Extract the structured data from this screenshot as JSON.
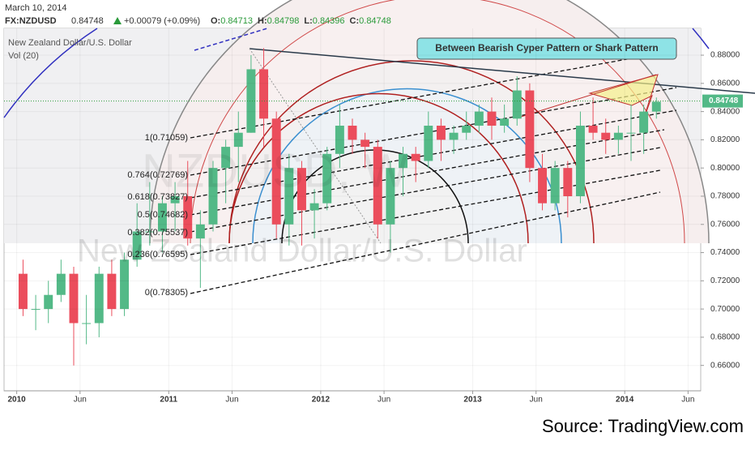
{
  "chart_data": {
    "type": "candlestick",
    "date": "March 10, 2014",
    "symbol": "FX:NZDUSD",
    "header_price": "0.84748",
    "header_change": "+0.00079 (+0.09%)",
    "ohlc_labels": [
      "O:",
      "H:",
      "L:",
      "C:"
    ],
    "ohlc_values": [
      "0.84713",
      "0.84798",
      "0.84396",
      "0.84748"
    ],
    "legend_name": "New Zealand Dollar/U.S. Dollar",
    "legend_volume": "Vol (20)",
    "watermark_symbol": "NZDUSD, W",
    "watermark_name": "New Zealand Dollar/U.S. Dollar",
    "annotation": "Between Bearish Cyper Pattern or Shark Pattern",
    "fib_labels": [
      "1(0.71059)",
      "0.764(0.72769)",
      "0.618(0.73827)",
      "0.5(0.74682)",
      "0.382(0.75537)",
      "0.236(0.76595)",
      "0(0.78305)"
    ],
    "source": "Source: TradingView.com",
    "last_price": 0.84748,
    "up_color": "#53b987",
    "down_color": "#eb4d5c",
    "x": [
      "2010-01",
      "2010-02",
      "2010-03",
      "2010-04",
      "2010-05",
      "2010-06",
      "2010-07",
      "2010-08",
      "2010-09",
      "2010-10",
      "2010-11",
      "2010-12",
      "2011-01",
      "2011-02",
      "2011-03",
      "2011-04",
      "2011-05",
      "2011-06",
      "2011-07",
      "2011-08",
      "2011-09",
      "2011-10",
      "2011-11",
      "2011-12",
      "2012-01",
      "2012-02",
      "2012-03",
      "2012-04",
      "2012-05",
      "2012-06",
      "2012-07",
      "2012-08",
      "2012-09",
      "2012-10",
      "2012-11",
      "2012-12",
      "2013-01",
      "2013-02",
      "2013-03",
      "2013-04",
      "2013-05",
      "2013-06",
      "2013-07",
      "2013-08",
      "2013-09",
      "2013-10",
      "2013-11",
      "2013-12",
      "2014-01",
      "2014-02",
      "2014-03"
    ],
    "open": [
      0.725,
      0.7,
      0.7,
      0.71,
      0.725,
      0.69,
      0.69,
      0.725,
      0.7,
      0.735,
      0.755,
      0.755,
      0.775,
      0.78,
      0.75,
      0.76,
      0.8,
      0.815,
      0.825,
      0.87,
      0.835,
      0.76,
      0.8,
      0.77,
      0.775,
      0.81,
      0.83,
      0.82,
      0.815,
      0.76,
      0.8,
      0.81,
      0.805,
      0.83,
      0.82,
      0.825,
      0.83,
      0.84,
      0.83,
      0.835,
      0.855,
      0.8,
      0.775,
      0.8,
      0.78,
      0.83,
      0.825,
      0.82,
      0.825,
      0.825,
      0.84
    ],
    "high": [
      0.735,
      0.71,
      0.72,
      0.735,
      0.73,
      0.71,
      0.73,
      0.735,
      0.74,
      0.775,
      0.79,
      0.78,
      0.79,
      0.805,
      0.77,
      0.805,
      0.82,
      0.84,
      0.88,
      0.885,
      0.84,
      0.81,
      0.805,
      0.785,
      0.815,
      0.845,
      0.835,
      0.825,
      0.82,
      0.805,
      0.815,
      0.815,
      0.84,
      0.835,
      0.83,
      0.84,
      0.845,
      0.85,
      0.845,
      0.865,
      0.86,
      0.81,
      0.805,
      0.805,
      0.84,
      0.85,
      0.835,
      0.83,
      0.845,
      0.845,
      0.85
    ],
    "low": [
      0.695,
      0.685,
      0.69,
      0.705,
      0.66,
      0.675,
      0.68,
      0.695,
      0.695,
      0.73,
      0.745,
      0.74,
      0.755,
      0.745,
      0.715,
      0.755,
      0.775,
      0.79,
      0.825,
      0.815,
      0.75,
      0.745,
      0.745,
      0.75,
      0.77,
      0.8,
      0.81,
      0.8,
      0.75,
      0.74,
      0.78,
      0.79,
      0.8,
      0.805,
      0.81,
      0.82,
      0.825,
      0.82,
      0.825,
      0.83,
      0.79,
      0.77,
      0.77,
      0.765,
      0.775,
      0.82,
      0.81,
      0.81,
      0.805,
      0.81,
      0.835
    ],
    "close": [
      0.7,
      0.7,
      0.71,
      0.725,
      0.69,
      0.69,
      0.725,
      0.7,
      0.735,
      0.755,
      0.755,
      0.775,
      0.78,
      0.75,
      0.76,
      0.8,
      0.815,
      0.825,
      0.87,
      0.835,
      0.76,
      0.8,
      0.77,
      0.775,
      0.81,
      0.83,
      0.82,
      0.815,
      0.76,
      0.8,
      0.81,
      0.805,
      0.83,
      0.82,
      0.825,
      0.83,
      0.84,
      0.83,
      0.835,
      0.855,
      0.8,
      0.775,
      0.8,
      0.78,
      0.83,
      0.825,
      0.82,
      0.825,
      0.825,
      0.84,
      0.847
    ],
    "xlim": [
      "2009-12",
      "2014-07"
    ],
    "xticks": [
      {
        "value": "2010-01",
        "label": "2010"
      },
      {
        "value": "2010-06",
        "label": "Jun"
      },
      {
        "value": "2011-01",
        "label": "2011"
      },
      {
        "value": "2011-06",
        "label": "Jun"
      },
      {
        "value": "2012-01",
        "label": "2012"
      },
      {
        "value": "2012-06",
        "label": "Jun"
      },
      {
        "value": "2013-01",
        "label": "2013"
      },
      {
        "value": "2013-06",
        "label": "Jun"
      },
      {
        "value": "2014-01",
        "label": "2014"
      },
      {
        "value": "2014-06",
        "label": "Jun"
      }
    ],
    "ylim": [
      0.642,
      0.899
    ],
    "yticks": [
      {
        "value": 0.66,
        "label": "0.66000"
      },
      {
        "value": 0.68,
        "label": "0.68000"
      },
      {
        "value": 0.7,
        "label": "0.70000"
      },
      {
        "value": 0.72,
        "label": "0.72000"
      },
      {
        "value": 0.74,
        "label": "0.74000"
      },
      {
        "value": 0.76,
        "label": "0.76000"
      },
      {
        "value": 0.78,
        "label": "0.78000"
      },
      {
        "value": 0.8,
        "label": "0.80000"
      },
      {
        "value": 0.82,
        "label": "0.82000"
      },
      {
        "value": 0.84,
        "label": "0.84000"
      },
      {
        "value": 0.86,
        "label": "0.86000"
      },
      {
        "value": 0.88,
        "label": "0.88000"
      }
    ],
    "grid": true
  }
}
